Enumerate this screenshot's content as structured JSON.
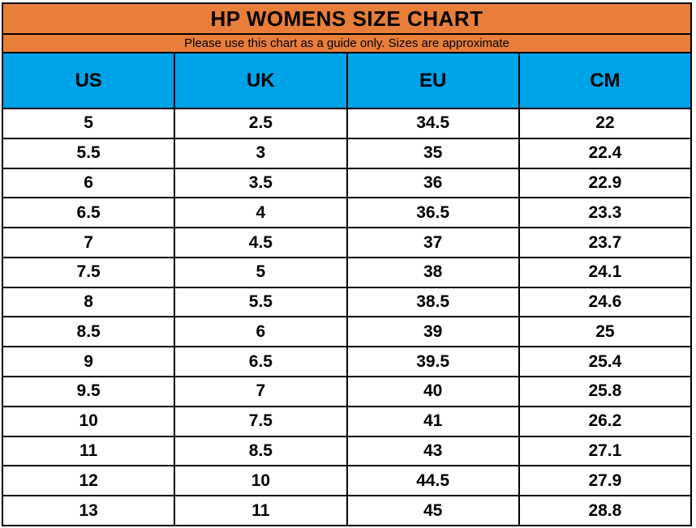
{
  "title": "HP WOMENS SIZE CHART",
  "subtitle": "Please use this chart as a guide only. Sizes are approximate",
  "colors": {
    "band_orange": "#E87E39",
    "header_blue": "#00A2E8",
    "grid_border": "#000000",
    "row_background": "#FFFFFF",
    "text": "#000000"
  },
  "chart_data": {
    "type": "table",
    "title": "HP WOMENS SIZE CHART",
    "subtitle": "Please use this chart as a guide only. Sizes are approximate",
    "columns": [
      "US",
      "UK",
      "EU",
      "CM"
    ],
    "rows": [
      [
        "5",
        "2.5",
        "34.5",
        "22"
      ],
      [
        "5.5",
        "3",
        "35",
        "22.4"
      ],
      [
        "6",
        "3.5",
        "36",
        "22.9"
      ],
      [
        "6.5",
        "4",
        "36.5",
        "23.3"
      ],
      [
        "7",
        "4.5",
        "37",
        "23.7"
      ],
      [
        "7.5",
        "5",
        "38",
        "24.1"
      ],
      [
        "8",
        "5.5",
        "38.5",
        "24.6"
      ],
      [
        "8.5",
        "6",
        "39",
        "25"
      ],
      [
        "9",
        "6.5",
        "39.5",
        "25.4"
      ],
      [
        "9.5",
        "7",
        "40",
        "25.8"
      ],
      [
        "10",
        "7.5",
        "41",
        "26.2"
      ],
      [
        "11",
        "8.5",
        "43",
        "27.1"
      ],
      [
        "12",
        "10",
        "44.5",
        "27.9"
      ],
      [
        "13",
        "11",
        "45",
        "28.8"
      ]
    ],
    "layout": {
      "grid": "on",
      "header_row_merged_title": true,
      "columns_equal_width": true
    }
  }
}
